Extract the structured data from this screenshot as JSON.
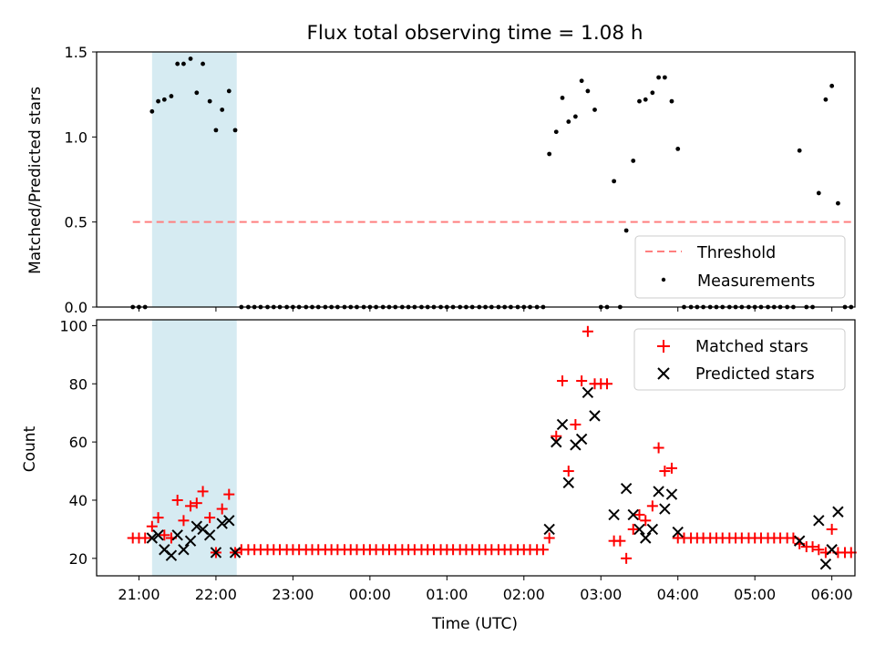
{
  "figure": {
    "title": "Flux total observing time = 1.08 h",
    "xlabel": "Time (UTC)",
    "x_tick_labels": [
      "21:00",
      "22:00",
      "23:00",
      "00:00",
      "01:00",
      "02:00",
      "03:00",
      "04:00",
      "05:00",
      "06:00"
    ],
    "highlight_color": "#add8e6"
  },
  "chart_data": [
    {
      "type": "scatter",
      "title": "Flux total observing time = 1.08 h",
      "ylabel": "Matched/Predicted stars",
      "x_unit": "hours after 21:00 UTC",
      "xlim": [
        -0.55,
        9.3
      ],
      "ylim": [
        0,
        1.5
      ],
      "y_ticks": [
        "0.0",
        "0.5",
        "1.0",
        "1.5"
      ],
      "highlight_span": [
        0.17,
        1.27
      ],
      "legend": {
        "placement": "lower-right",
        "entries": [
          "Threshold",
          "Measurements"
        ]
      },
      "threshold": {
        "name": "Threshold",
        "value": 0.5,
        "x_range": [
          -0.08,
          9.3
        ],
        "color": "#ff7f7f",
        "style": "dashed"
      },
      "series": [
        {
          "name": "Measurements",
          "marker": "dot",
          "color": "#000000",
          "points": [
            [
              -0.08,
              0
            ],
            [
              0.0,
              0
            ],
            [
              0.08,
              0
            ],
            [
              0.17,
              1.15
            ],
            [
              0.25,
              1.21
            ],
            [
              0.33,
              1.22
            ],
            [
              0.42,
              1.24
            ],
            [
              0.5,
              1.43
            ],
            [
              0.58,
              1.43
            ],
            [
              0.67,
              1.46
            ],
            [
              0.75,
              1.26
            ],
            [
              0.83,
              1.43
            ],
            [
              0.92,
              1.21
            ],
            [
              1.0,
              1.04
            ],
            [
              1.08,
              1.16
            ],
            [
              1.17,
              1.27
            ],
            [
              1.25,
              1.04
            ],
            [
              1.33,
              0
            ],
            [
              1.42,
              0
            ],
            [
              1.5,
              0
            ],
            [
              1.58,
              0
            ],
            [
              1.67,
              0
            ],
            [
              1.75,
              0
            ],
            [
              1.83,
              0
            ],
            [
              1.92,
              0
            ],
            [
              2.0,
              0
            ],
            [
              2.08,
              0
            ],
            [
              2.17,
              0
            ],
            [
              2.25,
              0
            ],
            [
              2.33,
              0
            ],
            [
              2.42,
              0
            ],
            [
              2.5,
              0
            ],
            [
              2.58,
              0
            ],
            [
              2.67,
              0
            ],
            [
              2.75,
              0
            ],
            [
              2.83,
              0
            ],
            [
              2.92,
              0
            ],
            [
              3.0,
              0
            ],
            [
              3.08,
              0
            ],
            [
              3.17,
              0
            ],
            [
              3.25,
              0
            ],
            [
              3.33,
              0
            ],
            [
              3.42,
              0
            ],
            [
              3.5,
              0
            ],
            [
              3.58,
              0
            ],
            [
              3.67,
              0
            ],
            [
              3.75,
              0
            ],
            [
              3.83,
              0
            ],
            [
              3.92,
              0
            ],
            [
              4.0,
              0
            ],
            [
              4.08,
              0
            ],
            [
              4.17,
              0
            ],
            [
              4.25,
              0
            ],
            [
              4.33,
              0
            ],
            [
              4.42,
              0
            ],
            [
              4.5,
              0
            ],
            [
              4.58,
              0
            ],
            [
              4.67,
              0
            ],
            [
              4.75,
              0
            ],
            [
              4.83,
              0
            ],
            [
              4.92,
              0
            ],
            [
              5.0,
              0
            ],
            [
              5.08,
              0
            ],
            [
              5.17,
              0
            ],
            [
              5.25,
              0
            ],
            [
              5.33,
              0.9
            ],
            [
              5.42,
              1.03
            ],
            [
              5.5,
              1.23
            ],
            [
              5.58,
              1.09
            ],
            [
              5.67,
              1.12
            ],
            [
              5.75,
              1.33
            ],
            [
              5.83,
              1.27
            ],
            [
              5.92,
              1.16
            ],
            [
              6.0,
              0
            ],
            [
              6.08,
              0
            ],
            [
              6.17,
              0.74
            ],
            [
              6.25,
              0
            ],
            [
              6.33,
              0.45
            ],
            [
              6.42,
              0.86
            ],
            [
              6.5,
              1.21
            ],
            [
              6.58,
              1.22
            ],
            [
              6.67,
              1.26
            ],
            [
              6.75,
              1.35
            ],
            [
              6.83,
              1.35
            ],
            [
              6.92,
              1.21
            ],
            [
              7.0,
              0.93
            ],
            [
              7.08,
              0
            ],
            [
              7.17,
              0
            ],
            [
              7.25,
              0
            ],
            [
              7.33,
              0
            ],
            [
              7.42,
              0
            ],
            [
              7.5,
              0
            ],
            [
              7.58,
              0
            ],
            [
              7.67,
              0
            ],
            [
              7.75,
              0
            ],
            [
              7.83,
              0
            ],
            [
              7.92,
              0
            ],
            [
              8.0,
              0
            ],
            [
              8.08,
              0
            ],
            [
              8.17,
              0
            ],
            [
              8.25,
              0
            ],
            [
              8.33,
              0
            ],
            [
              8.42,
              0
            ],
            [
              8.5,
              0
            ],
            [
              8.58,
              0.92
            ],
            [
              8.67,
              0
            ],
            [
              8.75,
              0
            ],
            [
              8.83,
              0.67
            ],
            [
              8.92,
              1.22
            ],
            [
              9.0,
              1.3
            ],
            [
              9.08,
              0.61
            ],
            [
              9.17,
              0
            ],
            [
              9.25,
              0
            ]
          ]
        }
      ]
    },
    {
      "type": "scatter",
      "xlabel": "Time (UTC)",
      "ylabel": "Count",
      "x_unit": "hours after 21:00 UTC",
      "xlim": [
        -0.55,
        9.3
      ],
      "ylim": [
        14,
        102
      ],
      "y_ticks": [
        20,
        40,
        60,
        80,
        100
      ],
      "highlight_span": [
        0.17,
        1.27
      ],
      "legend": {
        "placement": "top-right",
        "entries": [
          "Matched stars",
          "Predicted stars"
        ]
      },
      "series": [
        {
          "name": "Matched stars",
          "marker": "plus",
          "color": "#ff0000",
          "points": [
            [
              -0.08,
              27
            ],
            [
              0.0,
              27
            ],
            [
              0.08,
              27
            ],
            [
              0.17,
              31
            ],
            [
              0.25,
              34
            ],
            [
              0.33,
              28
            ],
            [
              0.42,
              27
            ],
            [
              0.5,
              40
            ],
            [
              0.58,
              33
            ],
            [
              0.67,
              38
            ],
            [
              0.75,
              39
            ],
            [
              0.83,
              43
            ],
            [
              0.92,
              34
            ],
            [
              1.0,
              22
            ],
            [
              1.08,
              37
            ],
            [
              1.17,
              42
            ],
            [
              1.25,
              22
            ],
            [
              1.33,
              23
            ],
            [
              1.42,
              23
            ],
            [
              1.5,
              23
            ],
            [
              1.58,
              23
            ],
            [
              1.67,
              23
            ],
            [
              1.75,
              23
            ],
            [
              1.83,
              23
            ],
            [
              1.92,
              23
            ],
            [
              2.0,
              23
            ],
            [
              2.08,
              23
            ],
            [
              2.17,
              23
            ],
            [
              2.25,
              23
            ],
            [
              2.33,
              23
            ],
            [
              2.42,
              23
            ],
            [
              2.5,
              23
            ],
            [
              2.58,
              23
            ],
            [
              2.67,
              23
            ],
            [
              2.75,
              23
            ],
            [
              2.83,
              23
            ],
            [
              2.92,
              23
            ],
            [
              3.0,
              23
            ],
            [
              3.08,
              23
            ],
            [
              3.17,
              23
            ],
            [
              3.25,
              23
            ],
            [
              3.33,
              23
            ],
            [
              3.42,
              23
            ],
            [
              3.5,
              23
            ],
            [
              3.58,
              23
            ],
            [
              3.67,
              23
            ],
            [
              3.75,
              23
            ],
            [
              3.83,
              23
            ],
            [
              3.92,
              23
            ],
            [
              4.0,
              23
            ],
            [
              4.08,
              23
            ],
            [
              4.17,
              23
            ],
            [
              4.25,
              23
            ],
            [
              4.33,
              23
            ],
            [
              4.42,
              23
            ],
            [
              4.5,
              23
            ],
            [
              4.58,
              23
            ],
            [
              4.67,
              23
            ],
            [
              4.75,
              23
            ],
            [
              4.83,
              23
            ],
            [
              4.92,
              23
            ],
            [
              5.0,
              23
            ],
            [
              5.08,
              23
            ],
            [
              5.17,
              23
            ],
            [
              5.25,
              23
            ],
            [
              5.33,
              27
            ],
            [
              5.42,
              62
            ],
            [
              5.5,
              81
            ],
            [
              5.58,
              50
            ],
            [
              5.67,
              66
            ],
            [
              5.75,
              81
            ],
            [
              5.83,
              98
            ],
            [
              5.92,
              80
            ],
            [
              6.0,
              80
            ],
            [
              6.08,
              80
            ],
            [
              6.17,
              26
            ],
            [
              6.25,
              26
            ],
            [
              6.33,
              20
            ],
            [
              6.42,
              30
            ],
            [
              6.5,
              35
            ],
            [
              6.58,
              33
            ],
            [
              6.67,
              38
            ],
            [
              6.75,
              58
            ],
            [
              6.83,
              50
            ],
            [
              6.92,
              51
            ],
            [
              7.0,
              27
            ],
            [
              7.08,
              27
            ],
            [
              7.17,
              27
            ],
            [
              7.25,
              27
            ],
            [
              7.33,
              27
            ],
            [
              7.42,
              27
            ],
            [
              7.5,
              27
            ],
            [
              7.58,
              27
            ],
            [
              7.67,
              27
            ],
            [
              7.75,
              27
            ],
            [
              7.83,
              27
            ],
            [
              7.92,
              27
            ],
            [
              8.0,
              27
            ],
            [
              8.08,
              27
            ],
            [
              8.17,
              27
            ],
            [
              8.25,
              27
            ],
            [
              8.33,
              27
            ],
            [
              8.42,
              27
            ],
            [
              8.5,
              27
            ],
            [
              8.58,
              25
            ],
            [
              8.67,
              24
            ],
            [
              8.75,
              24
            ],
            [
              8.83,
              23
            ],
            [
              8.92,
              22
            ],
            [
              9.0,
              30
            ],
            [
              9.08,
              22
            ],
            [
              9.17,
              22
            ],
            [
              9.25,
              22
            ]
          ]
        },
        {
          "name": "Predicted stars",
          "marker": "x",
          "color": "#000000",
          "points": [
            [
              0.17,
              27
            ],
            [
              0.25,
              28
            ],
            [
              0.33,
              23
            ],
            [
              0.42,
              21
            ],
            [
              0.5,
              28
            ],
            [
              0.58,
              23
            ],
            [
              0.67,
              26
            ],
            [
              0.75,
              31
            ],
            [
              0.83,
              30
            ],
            [
              0.92,
              28
            ],
            [
              1.0,
              22
            ],
            [
              1.08,
              32
            ],
            [
              1.17,
              33
            ],
            [
              1.25,
              22
            ],
            [
              5.33,
              30
            ],
            [
              5.42,
              60
            ],
            [
              5.5,
              66
            ],
            [
              5.58,
              46
            ],
            [
              5.67,
              59
            ],
            [
              5.75,
              61
            ],
            [
              5.83,
              77
            ],
            [
              5.92,
              69
            ],
            [
              6.17,
              35
            ],
            [
              6.33,
              44
            ],
            [
              6.42,
              35
            ],
            [
              6.5,
              30
            ],
            [
              6.58,
              27
            ],
            [
              6.67,
              30
            ],
            [
              6.75,
              43
            ],
            [
              6.83,
              37
            ],
            [
              6.92,
              42
            ],
            [
              7.0,
              29
            ],
            [
              8.58,
              26
            ],
            [
              8.83,
              33
            ],
            [
              8.92,
              18
            ],
            [
              9.0,
              23
            ],
            [
              9.08,
              36
            ]
          ]
        }
      ]
    }
  ]
}
